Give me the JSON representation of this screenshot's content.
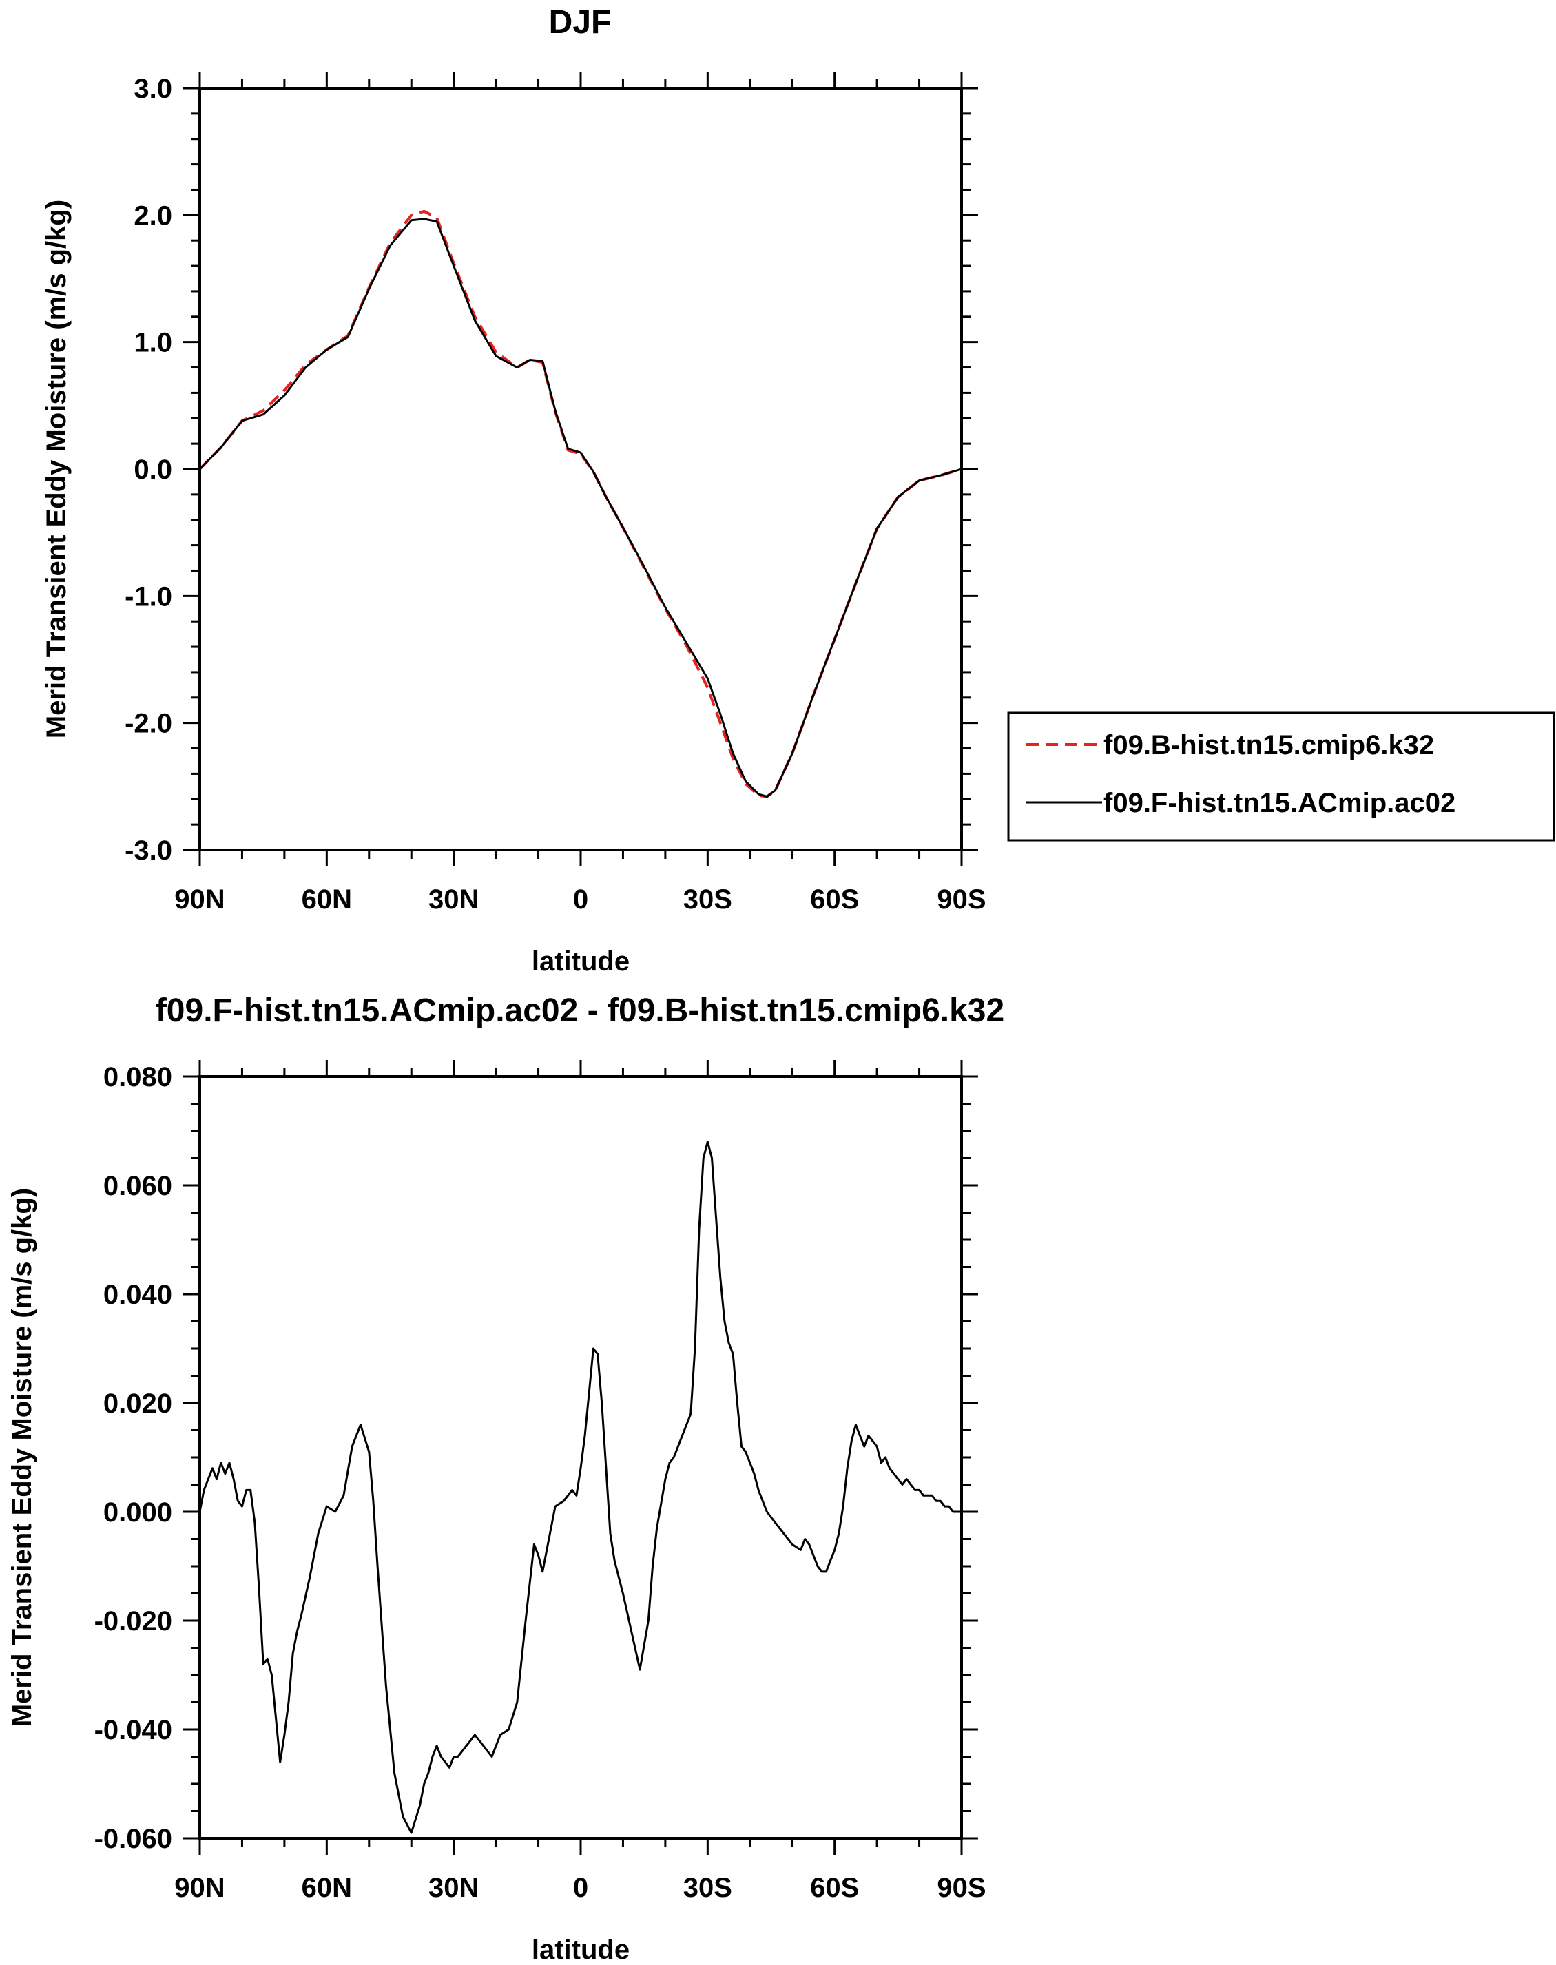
{
  "chart_data": [
    {
      "type": "line",
      "title": "DJF",
      "xlabel": "latitude",
      "ylabel": "Merid Transient Eddy Moisture (m/s g/kg)",
      "xlim": [
        90,
        -90
      ],
      "ylim": [
        -3.0,
        3.0
      ],
      "x_ticks": [
        90,
        60,
        30,
        0,
        -30,
        -60,
        -90
      ],
      "x_tick_labels": [
        "90N",
        "60N",
        "30N",
        "0",
        "30S",
        "60S",
        "90S"
      ],
      "y_ticks": [
        -3.0,
        -2.0,
        -1.0,
        0.0,
        1.0,
        2.0,
        3.0
      ],
      "y_tick_labels": [
        "-3.0",
        "-2.0",
        "-1.0",
        "0.0",
        "1.0",
        "2.0",
        "3.0"
      ],
      "legend": "right",
      "series": [
        {
          "name": "f09.B-hist.tn15.cmip6.k32",
          "color": "#e8231f",
          "dash": "dashed",
          "x": [
            90,
            85,
            80,
            75,
            70,
            65,
            60,
            55,
            50,
            45,
            40,
            37,
            34,
            30,
            25,
            20,
            15,
            12,
            9,
            6,
            3,
            0,
            -3,
            -6,
            -10,
            -15,
            -20,
            -25,
            -30,
            -33,
            -36,
            -39,
            -42,
            -44,
            -46,
            -50,
            -55,
            -60,
            -65,
            -70,
            -75,
            -80,
            -85,
            -90
          ],
          "y": [
            0.0,
            0.17,
            0.38,
            0.46,
            0.62,
            0.82,
            0.94,
            1.05,
            1.43,
            1.78,
            2.0,
            2.03,
            1.98,
            1.62,
            1.2,
            0.92,
            0.8,
            0.86,
            0.84,
            0.45,
            0.15,
            0.12,
            -0.02,
            -0.22,
            -0.46,
            -0.78,
            -1.1,
            -1.39,
            -1.72,
            -2.0,
            -2.28,
            -2.48,
            -2.57,
            -2.58,
            -2.53,
            -2.24,
            -1.78,
            -1.34,
            -0.9,
            -0.47,
            -0.22,
            -0.09,
            -0.05,
            0.0
          ]
        },
        {
          "name": "f09.F-hist.tn15.ACmip.ac02",
          "color": "#000000",
          "dash": "solid",
          "x": [
            90,
            85,
            80,
            75,
            70,
            65,
            60,
            55,
            50,
            45,
            40,
            37,
            34,
            30,
            25,
            20,
            15,
            12,
            9,
            6,
            3,
            0,
            -3,
            -6,
            -10,
            -15,
            -20,
            -25,
            -30,
            -33,
            -36,
            -39,
            -42,
            -44,
            -46,
            -50,
            -55,
            -60,
            -65,
            -70,
            -75,
            -80,
            -85,
            -90
          ],
          "y": [
            0.0,
            0.17,
            0.38,
            0.43,
            0.58,
            0.8,
            0.94,
            1.04,
            1.42,
            1.76,
            1.96,
            1.97,
            1.95,
            1.6,
            1.17,
            0.89,
            0.8,
            0.86,
            0.85,
            0.46,
            0.16,
            0.13,
            -0.02,
            -0.22,
            -0.46,
            -0.77,
            -1.09,
            -1.37,
            -1.65,
            -1.93,
            -2.24,
            -2.46,
            -2.56,
            -2.58,
            -2.53,
            -2.24,
            -1.78,
            -1.34,
            -0.9,
            -0.47,
            -0.22,
            -0.09,
            -0.05,
            0.0
          ]
        }
      ]
    },
    {
      "type": "line",
      "title": "f09.F-hist.tn15.ACmip.ac02 - f09.B-hist.tn15.cmip6.k32",
      "xlabel": "latitude",
      "ylabel": "Merid Transient Eddy Moisture (m/s g/kg)",
      "xlim": [
        90,
        -90
      ],
      "ylim": [
        -0.06,
        0.08
      ],
      "x_ticks": [
        90,
        60,
        30,
        0,
        -30,
        -60,
        -90
      ],
      "x_tick_labels": [
        "90N",
        "60N",
        "30N",
        "0",
        "30S",
        "60S",
        "90S"
      ],
      "y_ticks": [
        -0.06,
        -0.04,
        -0.02,
        0.0,
        0.02,
        0.04,
        0.06,
        0.08
      ],
      "y_tick_labels": [
        "-0.060",
        "-0.040",
        "-0.020",
        "0.000",
        "0.020",
        "0.040",
        "0.060",
        "0.080"
      ],
      "series": [
        {
          "color": "#000000",
          "dash": "solid",
          "x": [
            90,
            89,
            88,
            87,
            86,
            85,
            84,
            83,
            82,
            81,
            80,
            79,
            78,
            77,
            76,
            75,
            74,
            73,
            72,
            71,
            70,
            69,
            68,
            67,
            66,
            64,
            62,
            60,
            58,
            56,
            54,
            52,
            50,
            49,
            48,
            46,
            44,
            42,
            40,
            38,
            37,
            36,
            35,
            34,
            33,
            31,
            30,
            29,
            27,
            25,
            23,
            21,
            19,
            17,
            15,
            13,
            11,
            10,
            9,
            8,
            6,
            4,
            2,
            1,
            0,
            -1,
            -2,
            -3,
            -4,
            -5,
            -6,
            -7,
            -8,
            -10,
            -12,
            -14,
            -16,
            -17,
            -18,
            -20,
            -21,
            -22,
            -24,
            -26,
            -27,
            -28,
            -29,
            -30,
            -31,
            -32,
            -33,
            -34,
            -35,
            -36,
            -37,
            -38,
            -39,
            -40,
            -41,
            -42,
            -44,
            -46,
            -48,
            -50,
            -52,
            -53,
            -54,
            -55,
            -56,
            -57,
            -58,
            -59,
            -60,
            -61,
            -62,
            -63,
            -64,
            -65,
            -66,
            -67,
            -68,
            -69,
            -70,
            -71,
            -72,
            -73,
            -74,
            -75,
            -76,
            -77,
            -78,
            -79,
            -80,
            -81,
            -82,
            -83,
            -84,
            -85,
            -86,
            -87,
            -88,
            -89,
            -90
          ],
          "y": [
            0.0,
            0.004,
            0.006,
            0.008,
            0.006,
            0.009,
            0.007,
            0.009,
            0.006,
            0.002,
            0.001,
            0.004,
            0.004,
            -0.002,
            -0.014,
            -0.028,
            -0.027,
            -0.03,
            -0.038,
            -0.046,
            -0.041,
            -0.035,
            -0.026,
            -0.022,
            -0.019,
            -0.012,
            -0.004,
            0.001,
            0.0,
            0.003,
            0.012,
            0.016,
            0.011,
            0.002,
            -0.01,
            -0.032,
            -0.048,
            -0.056,
            -0.059,
            -0.054,
            -0.05,
            -0.048,
            -0.045,
            -0.043,
            -0.045,
            -0.047,
            -0.045,
            -0.045,
            -0.043,
            -0.041,
            -0.043,
            -0.045,
            -0.041,
            -0.04,
            -0.035,
            -0.02,
            -0.006,
            -0.008,
            -0.011,
            -0.007,
            0.001,
            0.002,
            0.004,
            0.003,
            0.008,
            0.014,
            0.022,
            0.03,
            0.029,
            0.02,
            0.008,
            -0.004,
            -0.009,
            -0.015,
            -0.022,
            -0.029,
            -0.02,
            -0.01,
            -0.003,
            0.006,
            0.009,
            0.01,
            0.014,
            0.018,
            0.03,
            0.052,
            0.065,
            0.068,
            0.065,
            0.054,
            0.043,
            0.035,
            0.031,
            0.029,
            0.02,
            0.012,
            0.011,
            0.009,
            0.007,
            0.004,
            0.0,
            -0.002,
            -0.004,
            -0.006,
            -0.007,
            -0.005,
            -0.006,
            -0.008,
            -0.01,
            -0.011,
            -0.011,
            -0.009,
            -0.007,
            -0.004,
            0.001,
            0.008,
            0.013,
            0.016,
            0.014,
            0.012,
            0.014,
            0.013,
            0.012,
            0.009,
            0.01,
            0.008,
            0.007,
            0.006,
            0.005,
            0.006,
            0.005,
            0.004,
            0.004,
            0.003,
            0.003,
            0.003,
            0.002,
            0.002,
            0.001,
            0.001,
            0.0,
            0.0,
            0.0
          ]
        }
      ]
    }
  ]
}
